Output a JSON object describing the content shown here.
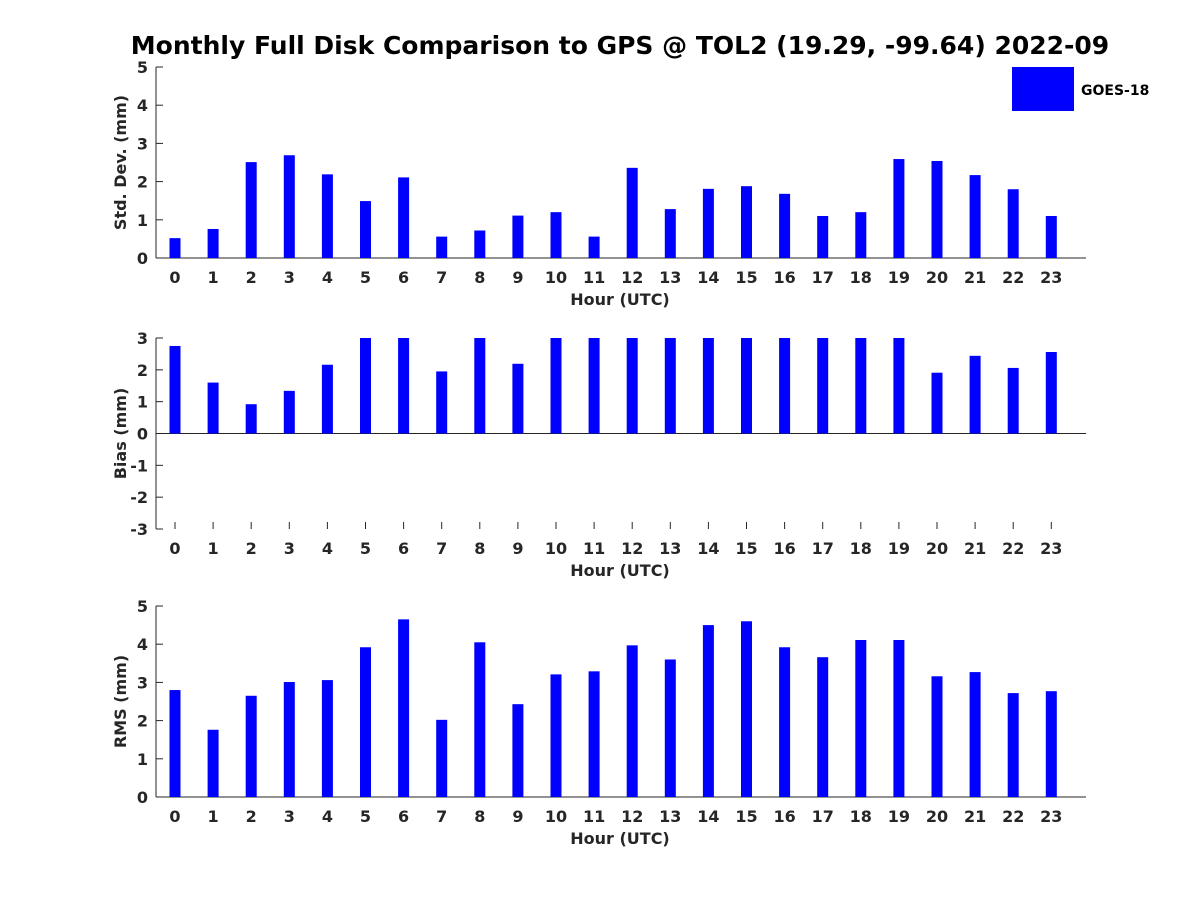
{
  "title": "Monthly Full Disk Comparison to GPS @ TOL2 (19.29, -99.64) 2022-09",
  "legend": {
    "label": "GOES-18",
    "color": "#0000ff"
  },
  "chart_data": [
    {
      "type": "bar",
      "id": "std",
      "ylabel": "Std. Dev. (mm)",
      "xlabel": "Hour (UTC)",
      "ylim": [
        0,
        5
      ],
      "yticks": [
        "0",
        "1",
        "2",
        "3",
        "4",
        "5"
      ],
      "categories": [
        "0",
        "1",
        "2",
        "3",
        "4",
        "5",
        "6",
        "7",
        "8",
        "9",
        "10",
        "11",
        "12",
        "13",
        "14",
        "15",
        "16",
        "17",
        "18",
        "19",
        "20",
        "21",
        "22",
        "23"
      ],
      "series": [
        {
          "name": "GOES-18",
          "values": [
            0.52,
            0.76,
            2.51,
            2.69,
            2.19,
            1.49,
            2.11,
            0.56,
            0.72,
            1.11,
            1.2,
            0.56,
            2.36,
            1.28,
            1.81,
            1.88,
            1.68,
            1.1,
            1.2,
            2.59,
            2.54,
            2.17,
            1.8,
            1.1
          ]
        }
      ]
    },
    {
      "type": "bar",
      "id": "bias",
      "ylabel": "Bias (mm)",
      "xlabel": "Hour (UTC)",
      "ylim": [
        -3,
        3
      ],
      "yticks": [
        "-3",
        "-2",
        "-1",
        "0",
        "1",
        "2",
        "3"
      ],
      "categories": [
        "0",
        "1",
        "2",
        "3",
        "4",
        "5",
        "6",
        "7",
        "8",
        "9",
        "10",
        "11",
        "12",
        "13",
        "14",
        "15",
        "16",
        "17",
        "18",
        "19",
        "20",
        "21",
        "22",
        "23"
      ],
      "series": [
        {
          "name": "GOES-18",
          "values": [
            2.75,
            1.6,
            0.92,
            1.34,
            2.16,
            3.0,
            3.0,
            1.95,
            3.0,
            2.19,
            3.0,
            3.0,
            3.0,
            3.0,
            3.0,
            3.0,
            3.0,
            3.0,
            3.0,
            3.0,
            1.91,
            2.44,
            2.06,
            2.56
          ]
        }
      ]
    },
    {
      "type": "bar",
      "id": "rms",
      "ylabel": "RMS (mm)",
      "xlabel": "Hour (UTC)",
      "ylim": [
        0,
        5
      ],
      "yticks": [
        "0",
        "1",
        "2",
        "3",
        "4",
        "5"
      ],
      "categories": [
        "0",
        "1",
        "2",
        "3",
        "4",
        "5",
        "6",
        "7",
        "8",
        "9",
        "10",
        "11",
        "12",
        "13",
        "14",
        "15",
        "16",
        "17",
        "18",
        "19",
        "20",
        "21",
        "22",
        "23"
      ],
      "series": [
        {
          "name": "GOES-18",
          "values": [
            2.8,
            1.76,
            2.65,
            3.01,
            3.06,
            3.92,
            4.65,
            2.02,
            4.05,
            2.43,
            3.21,
            3.29,
            3.97,
            3.6,
            4.5,
            4.6,
            3.92,
            3.66,
            4.11,
            4.11,
            3.16,
            3.27,
            2.72,
            2.77
          ]
        }
      ]
    }
  ]
}
